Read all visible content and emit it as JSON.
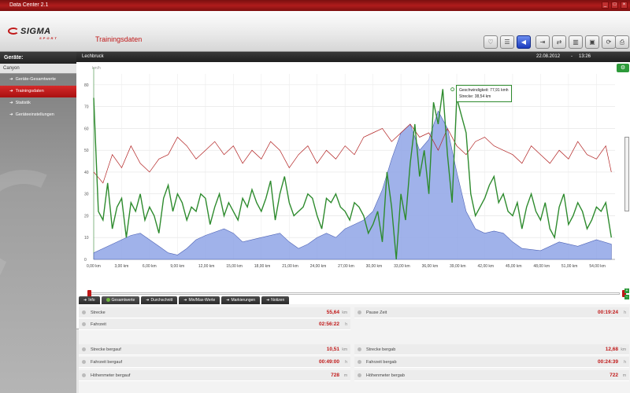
{
  "window": {
    "title": "Data Center 2.1",
    "min": "_",
    "max": "□",
    "close": "×"
  },
  "brand": {
    "logo": "SIGMA",
    "logo_sub": "SPORT"
  },
  "header": {
    "title": "Trainingsdaten"
  },
  "toolbar": {
    "icons": [
      "pulse-icon",
      "notes-icon",
      "back-icon",
      "export-icon",
      "transfer-icon",
      "book-icon",
      "computer-icon",
      "sync-icon",
      "print-icon"
    ]
  },
  "sidebar": {
    "heading": "Geräte:",
    "device": "Canyon",
    "items": [
      {
        "label": "Geräte-Gesamtwerte"
      },
      {
        "label": "Trainingsdaten"
      },
      {
        "label": "Statistik"
      },
      {
        "label": "Geräteeinstellungen"
      }
    ]
  },
  "main_header": {
    "tour": "Lechbruck",
    "date": "22.08.2012",
    "sep": "-",
    "time": "13:26"
  },
  "tooltip": {
    "line1": "Geschwindigkeit: 77,91 kmh",
    "line2": "Strecke: 38,54 km"
  },
  "tabs": [
    {
      "label": "Info"
    },
    {
      "label": "Gesamtwerte"
    },
    {
      "label": "Durchschnitt"
    },
    {
      "label": "Min/Max-Werte"
    },
    {
      "label": "Markierungen"
    },
    {
      "label": "Notizen"
    }
  ],
  "stats": {
    "left": [
      {
        "label": "Strecke",
        "value": "55,64",
        "unit": "km"
      },
      {
        "label": "Fahrzeit",
        "value": "02:56:22",
        "unit": "h"
      },
      {
        "label": "Strecke bergauf",
        "value": "10,51",
        "unit": "km"
      },
      {
        "label": "Fahrzeit bergauf",
        "value": "00:49:00",
        "unit": "h"
      },
      {
        "label": "Höhenmeter bergauf",
        "value": "728",
        "unit": "m"
      }
    ],
    "right": [
      {
        "label": "Pause Zeit",
        "value": "00:19:24",
        "unit": "h"
      },
      {
        "label": "Strecke bergab",
        "value": "12,68",
        "unit": "km"
      },
      {
        "label": "Fahrzeit bergab",
        "value": "00:24:39",
        "unit": "h"
      },
      {
        "label": "Höhenmeter bergab",
        "value": "722",
        "unit": "m"
      }
    ]
  },
  "chart_data": {
    "type": "line",
    "ylabel": "km/h",
    "ylim": [
      0,
      85
    ],
    "yticks": [
      "0",
      "10",
      "20",
      "30",
      "40",
      "50",
      "60",
      "70",
      "80"
    ],
    "xlim": [
      0,
      56
    ],
    "xticks": [
      "0,00 km",
      "3,00 km",
      "6,00 km",
      "9,00 km",
      "12,00 km",
      "15,00 km",
      "18,00 km",
      "21,00 km",
      "24,00 km",
      "27,00 km",
      "30,00 km",
      "33,00 km",
      "36,00 km",
      "39,00 km",
      "42,00 km",
      "45,00 km",
      "48,00 km",
      "51,00 km",
      "54,00 km"
    ],
    "grid": true,
    "colors": {
      "speed": "#2e8b2e",
      "heartrate": "#b22222",
      "altitude": "#8fa4e6"
    },
    "series": [
      {
        "key": "altitude",
        "x": [
          0,
          2,
          4,
          5,
          6,
          7,
          8,
          9,
          10,
          11,
          12,
          14,
          15,
          16,
          18,
          20,
          21,
          22,
          23,
          24,
          25,
          26,
          27,
          28,
          29,
          30,
          31,
          32,
          33,
          34,
          35,
          36,
          37,
          38,
          39,
          40,
          41,
          42,
          43,
          44,
          45,
          46,
          48,
          50,
          52,
          54,
          55.6
        ],
        "values": [
          3,
          7,
          11,
          12,
          9,
          6,
          3,
          2,
          5,
          9,
          11,
          14,
          12,
          8,
          10,
          12,
          8,
          5,
          7,
          10,
          12,
          10,
          14,
          16,
          18,
          22,
          32,
          46,
          58,
          62,
          50,
          55,
          68,
          60,
          40,
          22,
          14,
          12,
          13,
          12,
          8,
          5,
          4,
          8,
          6,
          9,
          7
        ]
      },
      {
        "key": "heartrate",
        "x": [
          0,
          1,
          2,
          3,
          4,
          5,
          6,
          7,
          8,
          9,
          10,
          11,
          12,
          13,
          14,
          15,
          16,
          17,
          18,
          19,
          20,
          21,
          22,
          23,
          24,
          25,
          26,
          27,
          28,
          29,
          30,
          31,
          32,
          33,
          34,
          35,
          36,
          37,
          38,
          39,
          40,
          41,
          42,
          43,
          44,
          45,
          46,
          47,
          48,
          49,
          50,
          51,
          52,
          53,
          54,
          55,
          55.6
        ],
        "values": [
          40,
          35,
          48,
          42,
          52,
          44,
          40,
          46,
          48,
          56,
          52,
          46,
          50,
          54,
          48,
          52,
          44,
          50,
          46,
          54,
          50,
          42,
          48,
          52,
          44,
          50,
          46,
          52,
          48,
          56,
          58,
          60,
          54,
          58,
          62,
          56,
          58,
          50,
          60,
          52,
          48,
          54,
          56,
          52,
          50,
          48,
          44,
          52,
          48,
          44,
          50,
          46,
          54,
          48,
          46,
          52,
          40
        ]
      },
      {
        "key": "speed",
        "x": [
          0,
          0.5,
          1,
          1.5,
          2,
          2.5,
          3,
          3.5,
          4,
          4.5,
          5,
          5.5,
          6,
          6.5,
          7,
          7.5,
          8,
          8.5,
          9,
          9.5,
          10,
          10.5,
          11,
          11.5,
          12,
          12.5,
          13,
          13.5,
          14,
          14.5,
          15,
          15.5,
          16,
          16.5,
          17,
          17.5,
          18,
          18.5,
          19,
          19.5,
          20,
          20.5,
          21,
          21.5,
          22,
          22.5,
          23,
          23.5,
          24,
          24.5,
          25,
          25.5,
          26,
          26.5,
          27,
          27.5,
          28,
          28.5,
          29,
          29.5,
          30,
          30.5,
          31,
          31.5,
          32,
          32.5,
          33,
          33.5,
          34,
          34.5,
          35,
          35.5,
          36,
          36.5,
          37,
          37.5,
          38,
          38.5,
          39,
          39.5,
          40,
          40.5,
          41,
          41.5,
          42,
          42.5,
          43,
          43.5,
          44,
          44.5,
          45,
          45.5,
          46,
          46.5,
          47,
          47.5,
          48,
          48.5,
          49,
          49.5,
          50,
          50.5,
          51,
          51.5,
          52,
          52.5,
          53,
          53.5,
          54,
          54.5,
          55,
          55.6
        ],
        "values": [
          74,
          22,
          18,
          35,
          14,
          24,
          28,
          10,
          26,
          22,
          30,
          18,
          24,
          20,
          12,
          28,
          34,
          22,
          30,
          26,
          18,
          24,
          22,
          30,
          28,
          16,
          24,
          30,
          20,
          26,
          22,
          18,
          28,
          24,
          32,
          26,
          22,
          28,
          36,
          18,
          30,
          38,
          26,
          20,
          22,
          24,
          30,
          28,
          20,
          14,
          28,
          26,
          30,
          24,
          22,
          18,
          26,
          24,
          20,
          12,
          16,
          22,
          8,
          40,
          24,
          0,
          30,
          18,
          44,
          62,
          38,
          50,
          30,
          72,
          62,
          78,
          48,
          26,
          74,
          66,
          58,
          30,
          20,
          24,
          28,
          34,
          38,
          26,
          30,
          22,
          20,
          26,
          14,
          24,
          30,
          22,
          18,
          26,
          14,
          10,
          24,
          30,
          16,
          20,
          26,
          22,
          14,
          18,
          24,
          22,
          26,
          10
        ]
      }
    ],
    "annotation": {
      "x": 38.54,
      "y": 77.91
    }
  }
}
